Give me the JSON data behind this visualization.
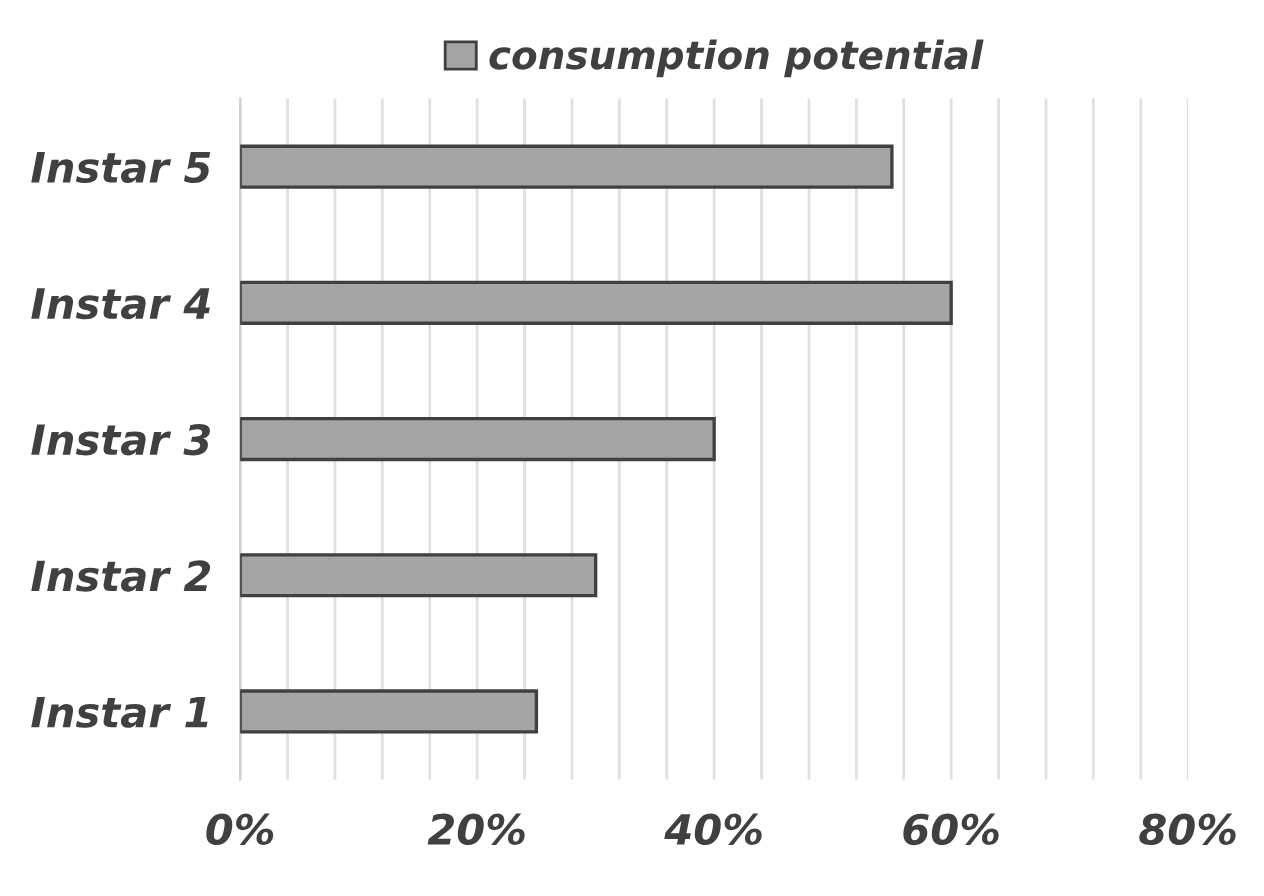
{
  "chart_data": {
    "type": "bar",
    "orientation": "horizontal",
    "categories": [
      "Instar 5",
      "Instar 4",
      "Instar 3",
      "Instar 2",
      "Instar 1"
    ],
    "series": [
      {
        "name": "consumption potential",
        "color": "#a5a5a5",
        "values": [
          55,
          60,
          40,
          30,
          25
        ]
      }
    ],
    "xlim": [
      0,
      80
    ],
    "xticks": [
      {
        "value": 0,
        "label": "0%"
      },
      {
        "value": 4,
        "label": null
      },
      {
        "value": 8,
        "label": null
      },
      {
        "value": 12,
        "label": null
      },
      {
        "value": 16,
        "label": null
      },
      {
        "value": 20,
        "label": "20%"
      },
      {
        "value": 24,
        "label": null
      },
      {
        "value": 28,
        "label": null
      },
      {
        "value": 32,
        "label": null
      },
      {
        "value": 36,
        "label": null
      },
      {
        "value": 40,
        "label": "40%"
      },
      {
        "value": 44,
        "label": null
      },
      {
        "value": 48,
        "label": null
      },
      {
        "value": 52,
        "label": null
      },
      {
        "value": 56,
        "label": null
      },
      {
        "value": 60,
        "label": "60%"
      },
      {
        "value": 64,
        "label": null
      },
      {
        "value": 68,
        "label": null
      },
      {
        "value": 72,
        "label": null
      },
      {
        "value": 76,
        "label": null
      },
      {
        "value": 80,
        "label": "80%"
      }
    ],
    "grid": "x",
    "legend": "top"
  }
}
